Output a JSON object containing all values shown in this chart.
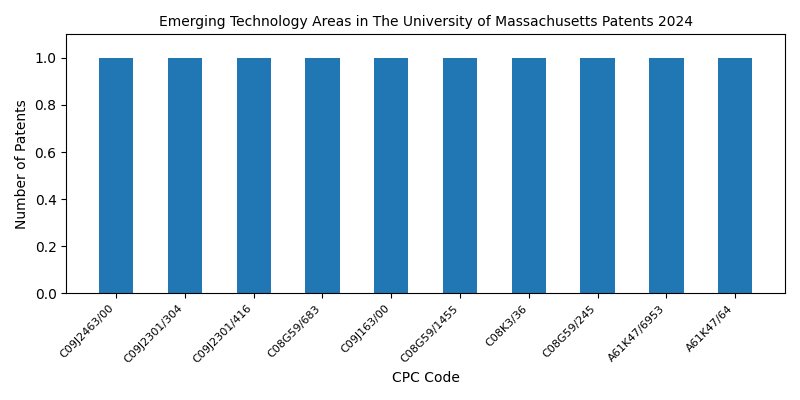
{
  "title": "Emerging Technology Areas in The University of Massachusetts Patents 2024",
  "xlabel": "CPC Code",
  "ylabel": "Number of Patents",
  "categories": [
    "C09J2463/00",
    "C09J2301/304",
    "C09J2301/416",
    "C08G59/683",
    "C09J163/00",
    "C08G59/1455",
    "C08K3/36",
    "C08G59/245",
    "A61K47/6953",
    "A61K47/64"
  ],
  "values": [
    1,
    1,
    1,
    1,
    1,
    1,
    1,
    1,
    1,
    1
  ],
  "bar_color": "#2077b4",
  "ylim": [
    0,
    1.1
  ],
  "yticks": [
    0.0,
    0.2,
    0.4,
    0.6,
    0.8,
    1.0
  ],
  "figsize": [
    8.0,
    4.0
  ],
  "dpi": 100,
  "bar_width": 0.5,
  "title_fontsize": 10,
  "label_fontsize": 10,
  "tick_fontsize": 8
}
